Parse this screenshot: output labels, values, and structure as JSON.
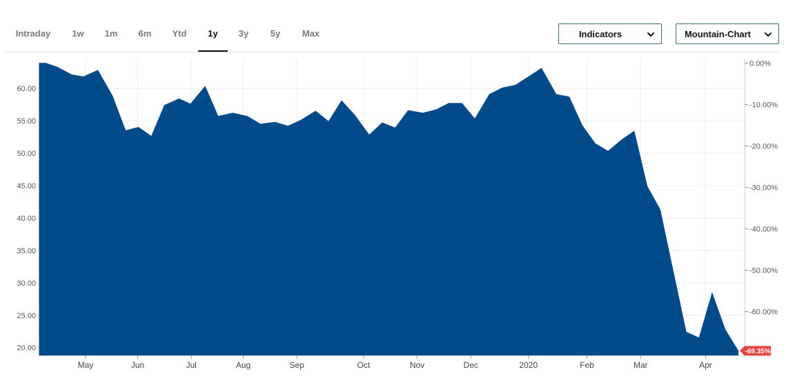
{
  "range_tabs": [
    {
      "label": "Intraday",
      "active": false
    },
    {
      "label": "1w",
      "active": false
    },
    {
      "label": "1m",
      "active": false
    },
    {
      "label": "6m",
      "active": false
    },
    {
      "label": "Ytd",
      "active": false
    },
    {
      "label": "1y",
      "active": true
    },
    {
      "label": "3y",
      "active": false
    },
    {
      "label": "5y",
      "active": false
    },
    {
      "label": "Max",
      "active": false
    }
  ],
  "indicators_dropdown": {
    "label": "Indicators",
    "icon": "chevron-down-icon"
  },
  "chart_type_dropdown": {
    "label": "Mountain-Chart",
    "icon": "chevron-down-icon"
  },
  "colors": {
    "fill": "#034a8b",
    "badge": "#e8423f",
    "grid": "#ececec"
  },
  "chart_data": {
    "type": "area",
    "xlabel": "",
    "ylabel": "",
    "x_labels": [
      "May",
      "Jun",
      "Jul",
      "Aug",
      "Sep",
      "Oct",
      "Nov",
      "Dec",
      "2020",
      "Feb",
      "Mar",
      "Apr"
    ],
    "x_label_days": [
      28.5,
      60.5,
      93.5,
      125.5,
      158.5,
      199.5,
      232.5,
      265.5,
      301,
      337,
      370,
      410
    ],
    "x_range_days": [
      0,
      434
    ],
    "y_ticks_left": [
      "60.00",
      "55.00",
      "50.00",
      "45.00",
      "40.00",
      "35.00",
      "30.00",
      "25.00",
      "20.00"
    ],
    "y_ticks_right": [
      "0.00%",
      "-10.00%",
      "-20.00%",
      "-30.00%",
      "-40.00%",
      "-50.00%",
      "-60.00%"
    ],
    "y_range": [
      18.8,
      64.5
    ],
    "pct_reference": 63.9,
    "grid": true,
    "last_change_label": "-69.35%",
    "points": [
      [
        0,
        63.9
      ],
      [
        4,
        63.9
      ],
      [
        11,
        63.3
      ],
      [
        20,
        62.1
      ],
      [
        27,
        61.8
      ],
      [
        36,
        62.8
      ],
      [
        45,
        58.8
      ],
      [
        53,
        53.5
      ],
      [
        61,
        54.0
      ],
      [
        69,
        52.6
      ],
      [
        77,
        57.4
      ],
      [
        86,
        58.4
      ],
      [
        93,
        57.6
      ],
      [
        102,
        60.3
      ],
      [
        110,
        55.7
      ],
      [
        119,
        56.2
      ],
      [
        128,
        55.7
      ],
      [
        136,
        54.5
      ],
      [
        145,
        54.8
      ],
      [
        153,
        54.2
      ],
      [
        161,
        55.1
      ],
      [
        170,
        56.5
      ],
      [
        178,
        54.9
      ],
      [
        186,
        58.1
      ],
      [
        194,
        55.9
      ],
      [
        203,
        52.8
      ],
      [
        211,
        54.7
      ],
      [
        219,
        53.9
      ],
      [
        227,
        56.6
      ],
      [
        236,
        56.2
      ],
      [
        244,
        56.7
      ],
      [
        252,
        57.7
      ],
      [
        260,
        57.7
      ],
      [
        268,
        55.3
      ],
      [
        277,
        59.1
      ],
      [
        285,
        60.1
      ],
      [
        293,
        60.5
      ],
      [
        301,
        61.8
      ],
      [
        309,
        63.1
      ],
      [
        318,
        59.1
      ],
      [
        326,
        58.7
      ],
      [
        334,
        54.3
      ],
      [
        342,
        51.5
      ],
      [
        350,
        50.3
      ],
      [
        358,
        52.0
      ],
      [
        366,
        53.4
      ],
      [
        374,
        44.9
      ],
      [
        382,
        41.3
      ],
      [
        390,
        31.8
      ],
      [
        398,
        22.4
      ],
      [
        406,
        21.5
      ],
      [
        414,
        28.4
      ],
      [
        422,
        22.8
      ],
      [
        430,
        19.5
      ]
    ]
  }
}
